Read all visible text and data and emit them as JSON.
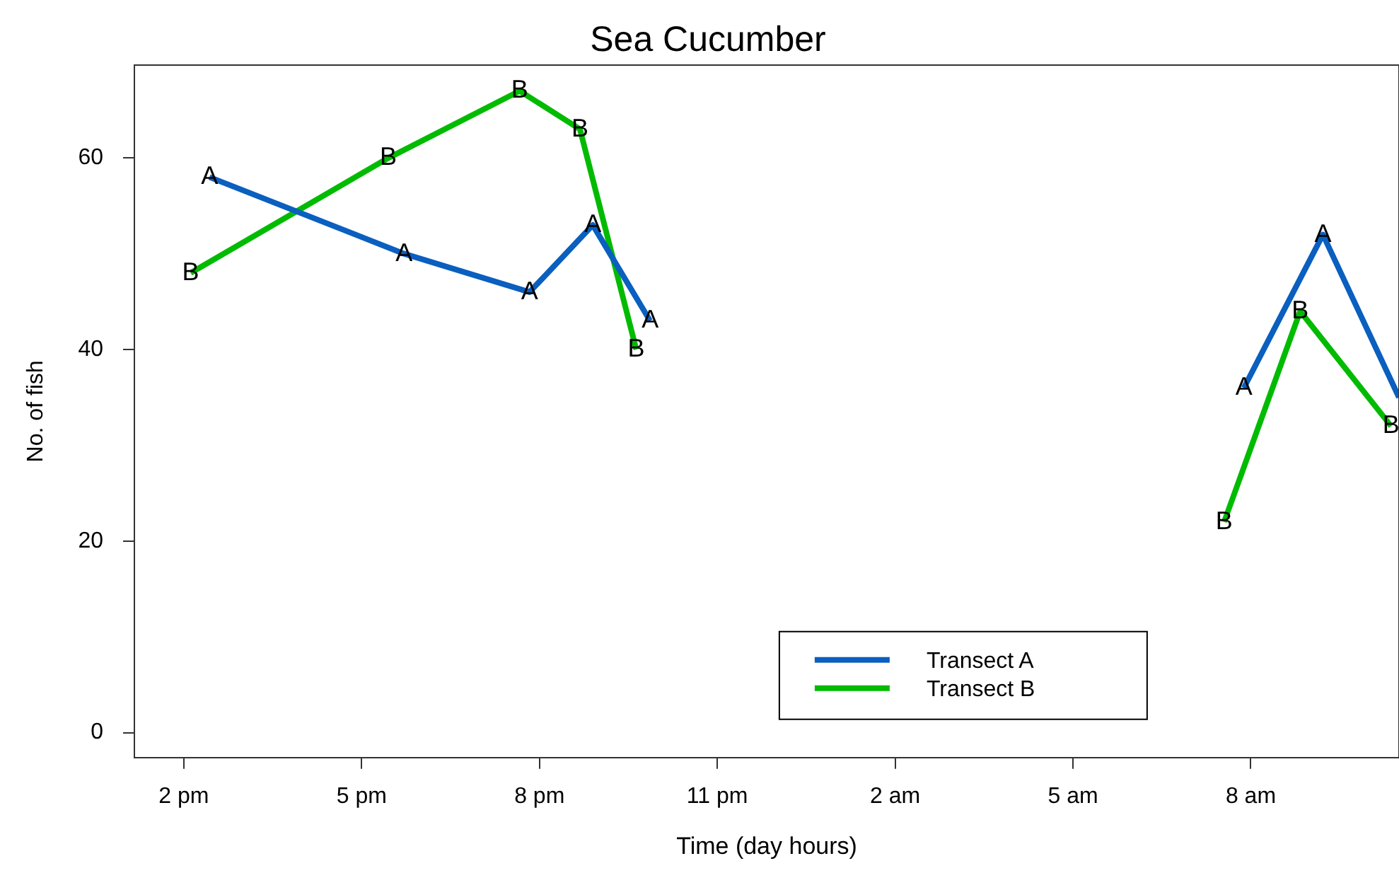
{
  "chart_data": {
    "type": "line",
    "title": "Sea Cucumber",
    "xlabel": "Time (day hours)",
    "ylabel": "No. of fish",
    "xlim": [
      "--01-01T13:10",
      "--01-02T10:30"
    ],
    "xticks": [
      {
        "value": "--01-01T14:00",
        "label": "2 pm"
      },
      {
        "value": "--01-01T17:00",
        "label": "5 pm"
      },
      {
        "value": "--01-01T20:00",
        "label": "8 pm"
      },
      {
        "value": "--01-01T23:00",
        "label": "11 pm"
      },
      {
        "value": "--01-02T02:00",
        "label": "2 am"
      },
      {
        "value": "--01-02T05:00",
        "label": "5 am"
      },
      {
        "value": "--01-02T08:00",
        "label": "8 am"
      }
    ],
    "ylim": [
      -2.6,
      69.7
    ],
    "yticks": [
      0,
      20,
      40,
      60
    ],
    "grid": false,
    "legend": "bottom",
    "marker": "none",
    "line_style": "solid",
    "series": [
      {
        "name": "Transect A",
        "color": "#0a5fbf",
        "x": [
          "--01-01T14:26",
          "--01-01T17:43",
          "--01-01T19:50",
          "--01-01T20:54",
          "--01-01T21:52",
          "--01-02T03:00",
          "--01-02T07:53",
          "--01-02T09:13",
          "--01-02T10:30"
        ],
        "values": [
          58,
          50,
          46,
          53,
          43,
          null,
          36,
          52,
          35
        ]
      },
      {
        "name": "Transect B",
        "color": "#00bb00",
        "x": [
          "--01-01T14:07",
          "--01-01T17:27",
          "--01-01T19:40",
          "--01-01T20:41",
          "--01-01T21:38",
          "--01-02T03:00",
          "--01-02T07:33",
          "--01-02T08:50",
          "--01-02T10:22"
        ],
        "values": [
          48,
          60,
          67,
          63,
          40,
          null,
          22,
          44,
          32
        ]
      }
    ],
    "annotations": [
      {
        "text": "A",
        "x": "--01-01T14:26",
        "y": 58
      },
      {
        "text": "A",
        "x": "--01-01T17:43",
        "y": 50
      },
      {
        "text": "A",
        "x": "--01-01T19:50",
        "y": 46
      },
      {
        "text": "A",
        "x": "--01-01T20:54",
        "y": 53
      },
      {
        "text": "A",
        "x": "--01-01T21:52",
        "y": 43
      },
      {
        "text": "A",
        "x": "--01-02T07:53",
        "y": 36
      },
      {
        "text": "A",
        "x": "--01-02T09:13",
        "y": 52
      },
      {
        "text": "B",
        "x": "--01-01T14:07",
        "y": 48
      },
      {
        "text": "B",
        "x": "--01-01T17:27",
        "y": 60
      },
      {
        "text": "B",
        "x": "--01-01T19:40",
        "y": 67
      },
      {
        "text": "B",
        "x": "--01-01T20:41",
        "y": 63
      },
      {
        "text": "B",
        "x": "--01-01T21:38",
        "y": 40
      },
      {
        "text": "B",
        "x": "--01-02T07:33",
        "y": 22
      },
      {
        "text": "B",
        "x": "--01-02T08:50",
        "y": 44
      },
      {
        "text": "B",
        "x": "--01-02T10:22",
        "y": 32
      }
    ]
  }
}
